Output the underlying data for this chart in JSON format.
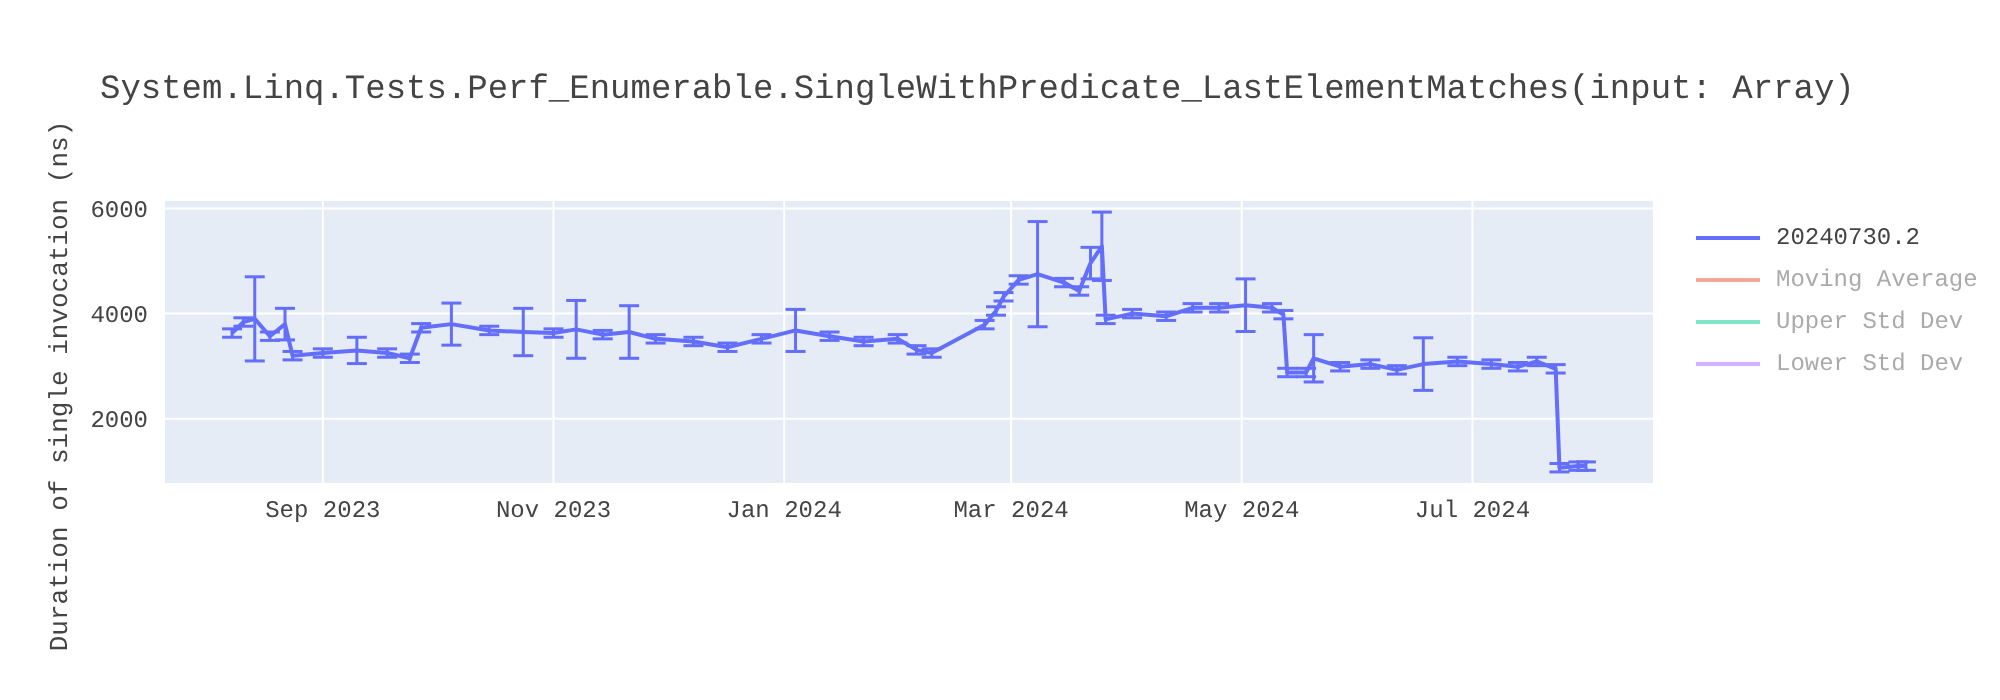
{
  "chart_data": {
    "type": "line",
    "title": "System.Linq.Tests.Perf_Enumerable.SingleWithPredicate_LastElementMatches(input: Array)",
    "ylabel": "Duration of single invocation (ns)",
    "x": [
      "2023-08-08",
      "2023-08-11",
      "2023-08-14",
      "2023-08-18",
      "2023-08-22",
      "2023-08-24",
      "2023-09-01",
      "2023-09-10",
      "2023-09-18",
      "2023-09-24",
      "2023-09-27",
      "2023-10-05",
      "2023-10-15",
      "2023-10-24",
      "2023-11-01",
      "2023-11-07",
      "2023-11-14",
      "2023-11-21",
      "2023-11-28",
      "2023-12-08",
      "2023-12-17",
      "2023-12-26",
      "2024-01-04",
      "2024-01-13",
      "2024-01-22",
      "2024-01-31",
      "2024-02-05",
      "2024-02-09",
      "2024-02-23",
      "2024-02-26",
      "2024-02-28",
      "2024-03-03",
      "2024-03-08",
      "2024-03-15",
      "2024-03-19",
      "2024-03-22",
      "2024-03-25",
      "2024-03-26",
      "2024-04-02",
      "2024-04-11",
      "2024-04-18",
      "2024-04-25",
      "2024-05-02",
      "2024-05-09",
      "2024-05-12",
      "2024-05-13",
      "2024-05-18",
      "2024-05-20",
      "2024-05-27",
      "2024-06-04",
      "2024-06-11",
      "2024-06-18",
      "2024-06-27",
      "2024-07-06",
      "2024-07-13",
      "2024-07-18",
      "2024-07-23",
      "2024-07-24",
      "2024-07-29",
      "2024-07-31"
    ],
    "series": [
      {
        "name": "20240730.2",
        "color": "#636efa",
        "values": [
          3630,
          3840,
          3900,
          3570,
          3800,
          3200,
          3250,
          3300,
          3250,
          3150,
          3730,
          3800,
          3680,
          3650,
          3630,
          3700,
          3600,
          3650,
          3520,
          3470,
          3360,
          3520,
          3680,
          3570,
          3470,
          3520,
          3310,
          3250,
          3790,
          4050,
          4320,
          4640,
          4750,
          4590,
          4430,
          4960,
          5280,
          3890,
          4000,
          3950,
          4110,
          4110,
          4160,
          4110,
          3980,
          2880,
          2880,
          3150,
          2990,
          3040,
          2930,
          3040,
          3090,
          3040,
          2990,
          3090,
          2950,
          1070,
          1100,
          1100
        ],
        "errors": [
          80,
          80,
          800,
          80,
          300,
          80,
          80,
          250,
          80,
          80,
          80,
          400,
          80,
          450,
          80,
          550,
          80,
          500,
          80,
          80,
          80,
          80,
          400,
          80,
          80,
          80,
          80,
          80,
          80,
          80,
          80,
          80,
          1000,
          80,
          80,
          300,
          650,
          80,
          80,
          80,
          80,
          80,
          500,
          80,
          80,
          80,
          80,
          450,
          80,
          80,
          80,
          500,
          80,
          80,
          80,
          80,
          80,
          80,
          80,
          80
        ]
      },
      {
        "name": "Moving Average",
        "color": "#f4a797",
        "values": [
          null,
          null,
          null,
          null,
          null,
          null,
          null,
          null,
          null,
          null,
          null,
          null,
          null,
          null,
          null,
          null,
          null,
          null,
          null,
          null,
          null,
          null,
          null,
          null,
          null,
          null,
          null,
          null,
          null,
          null,
          null,
          null,
          null,
          null,
          null,
          null,
          null,
          null,
          null,
          null,
          null,
          null,
          null,
          null,
          null,
          null,
          null,
          null,
          null,
          null,
          null,
          null,
          null,
          null,
          null,
          null,
          null,
          null,
          null,
          null
        ]
      },
      {
        "name": "Upper Std Dev",
        "color": "#7fe5c9",
        "values": [
          null,
          null,
          null,
          null,
          null,
          null,
          null,
          null,
          null,
          null,
          null,
          null,
          null,
          null,
          null,
          null,
          null,
          null,
          null,
          null,
          null,
          null,
          null,
          null,
          null,
          null,
          null,
          null,
          null,
          null,
          null,
          null,
          null,
          null,
          null,
          null,
          null,
          null,
          null,
          null,
          null,
          null,
          null,
          null,
          null,
          null,
          null,
          null,
          null,
          null,
          null,
          null,
          null,
          null,
          null,
          null,
          null,
          null,
          null,
          null
        ]
      },
      {
        "name": "Lower Std Dev",
        "color": "#d4b1fc",
        "values": [
          null,
          null,
          null,
          null,
          null,
          null,
          null,
          null,
          null,
          null,
          null,
          null,
          null,
          null,
          null,
          null,
          null,
          null,
          null,
          null,
          null,
          null,
          null,
          null,
          null,
          null,
          null,
          null,
          null,
          null,
          null,
          null,
          null,
          null,
          null,
          null,
          null,
          null,
          null,
          null,
          null,
          null,
          null,
          null,
          null,
          null,
          null,
          null,
          null,
          null,
          null,
          null,
          null,
          null,
          null,
          null,
          null,
          null,
          null,
          null
        ]
      }
    ],
    "xlim": [
      "2023-07-21",
      "2024-08-18"
    ],
    "xticks": [
      {
        "value": "2023-09-01",
        "label": "Sep 2023"
      },
      {
        "value": "2023-11-01",
        "label": "Nov 2023"
      },
      {
        "value": "2024-01-01",
        "label": "Jan 2024"
      },
      {
        "value": "2024-03-01",
        "label": "Mar 2024"
      },
      {
        "value": "2024-05-01",
        "label": "May 2024"
      },
      {
        "value": "2024-07-01",
        "label": "Jul 2024"
      }
    ],
    "ylim": [
      760,
      6160
    ],
    "yticks": [
      2000,
      4000,
      6000
    ],
    "grid": true,
    "legend": "top right"
  }
}
